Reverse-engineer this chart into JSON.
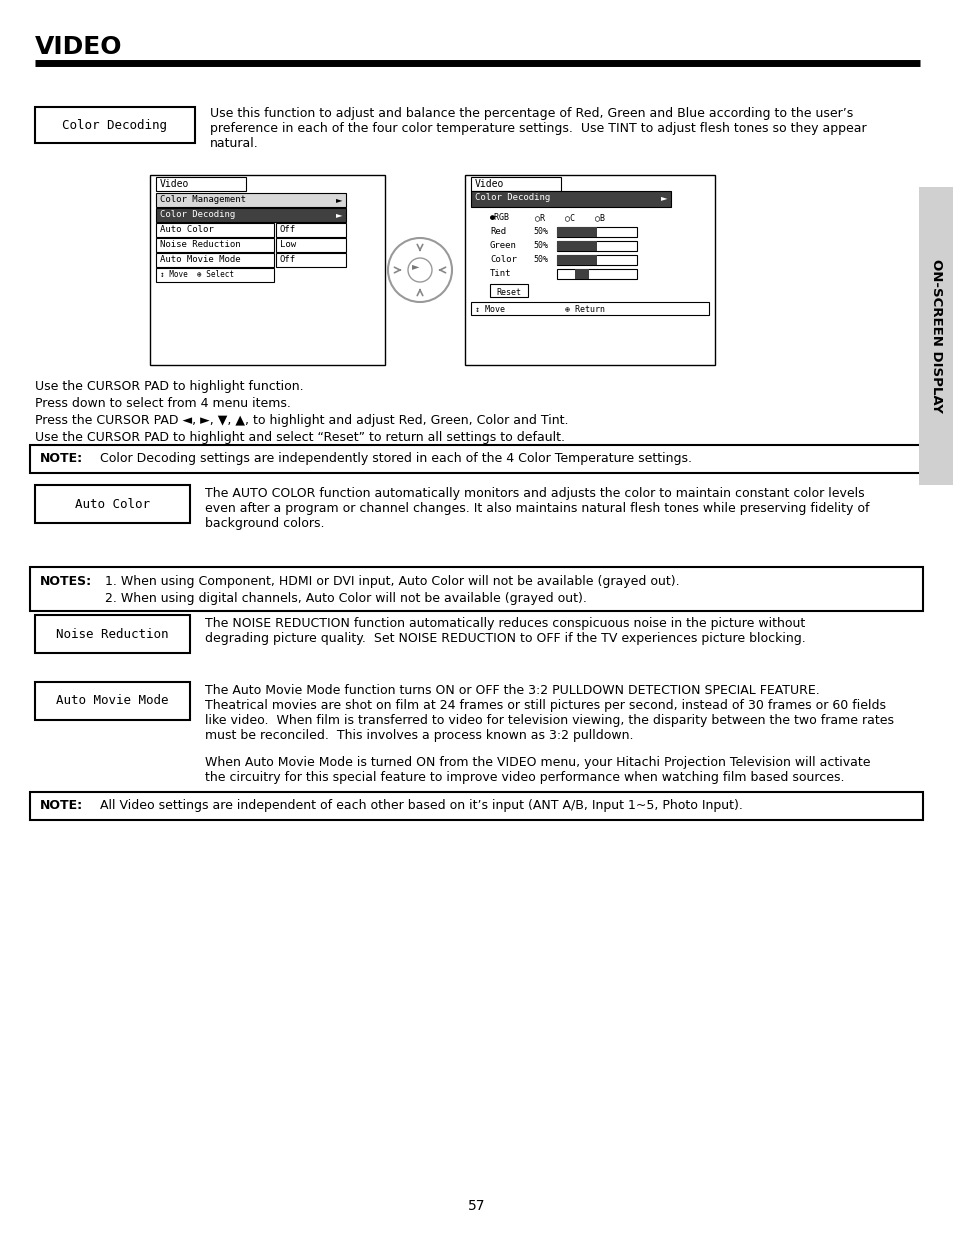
{
  "title": "VIDEO",
  "page_number": "57",
  "bg_color": "#ffffff",
  "color_decoding_label": "Color Decoding",
  "color_decoding_desc": "Use this function to adjust and balance the percentage of Red, Green and Blue according to the user’s\npreference in each of the four color temperature settings.  Use TINT to adjust flesh tones so they appear\nnatural.",
  "cursor_lines": [
    "Use the CURSOR PAD to highlight function.",
    "Press down to select from 4 menu items.",
    "Press the CURSOR PAD ◄, ►, ▼, ▲, to highlight and adjust Red, Green, Color and Tint.",
    "Use the CURSOR PAD to highlight and select “Reset” to return all settings to default."
  ],
  "note1_label": "NOTE:",
  "note1_text": "Color Decoding settings are independently stored in each of the 4 Color Temperature settings.",
  "auto_color_label": "Auto Color",
  "auto_color_desc": "The AUTO COLOR function automatically monitors and adjusts the color to maintain constant color levels\neven after a program or channel changes. It also maintains natural flesh tones while preserving fidelity of\nbackground colors.",
  "notes2_label": "NOTES:",
  "notes2_line1": "1. When using Component, HDMI or DVI input, Auto Color will not be available (grayed out).",
  "notes2_line2": "2. When using digital channels, Auto Color will not be available (grayed out).",
  "noise_label": "Noise Reduction",
  "noise_desc": "The NOISE REDUCTION function automatically reduces conspicuous noise in the picture without\ndegrading picture quality.  Set NOISE REDUCTION to OFF if the TV experiences picture blocking.",
  "amm_label": "Auto Movie Mode",
  "amm_desc1": "The Auto Movie Mode function turns ON or OFF the 3:2 PULLDOWN DETECTION SPECIAL FEATURE.\nTheatrical movies are shot on film at 24 frames or still pictures per second, instead of 30 frames or 60 fields\nlike video.  When film is transferred to video for television viewing, the disparity between the two frame rates\nmust be reconciled.  This involves a process known as 3:2 pulldown.",
  "amm_desc2": "When Auto Movie Mode is turned ON from the VIDEO menu, your Hitachi Projection Television will activate\nthe circuitry for this special feature to improve video performance when watching film based sources.",
  "note3_label": "NOTE:",
  "note3_text": "All Video settings are independent of each other based on it’s input (ANT A/B, Input 1~5, Photo Input).",
  "side_label": "ON-SCREEN DISPLAY",
  "side_bar_color": "#d0d0d0"
}
